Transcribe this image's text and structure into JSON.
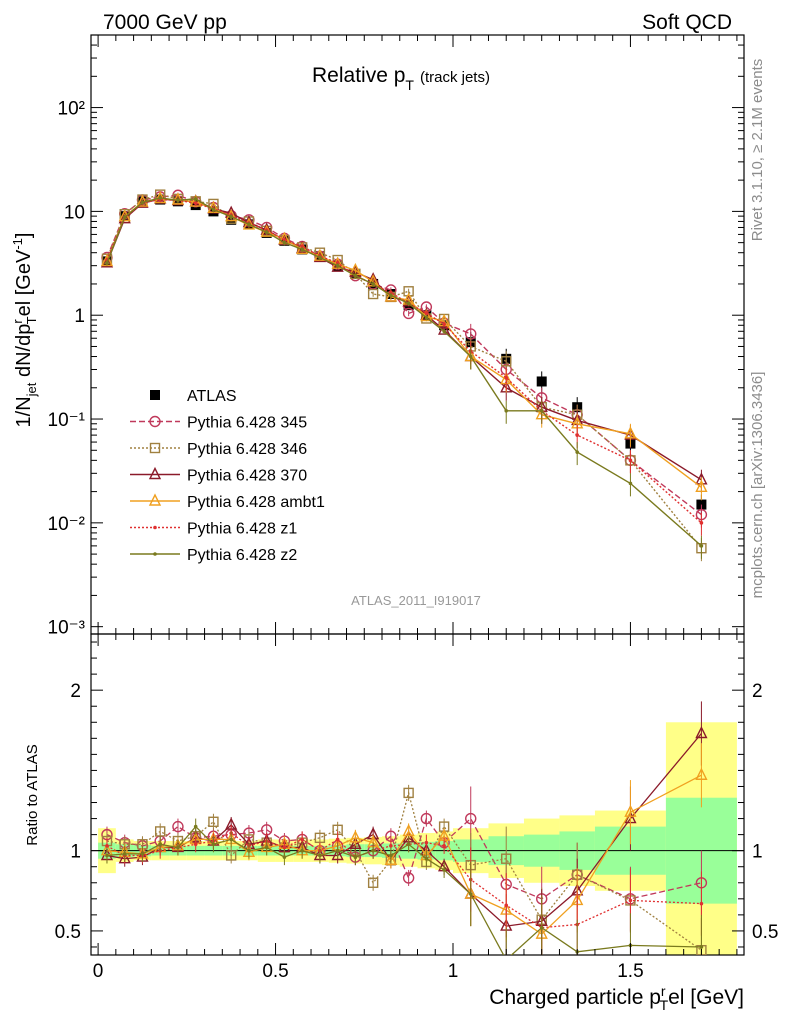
{
  "header": {
    "left": "7000 GeV pp",
    "right": "Soft QCD"
  },
  "side_labels": {
    "rivet": "Rivet 3.1.10, ≥ 2.1M events",
    "mcplots": "mcplots.cern.ch [arXiv:1306.3436]"
  },
  "chart_data": [
    {
      "type": "scatter",
      "title": "Relative p",
      "title_sub": "T",
      "title_suffix": "(track jets)",
      "ylabel": "1/N",
      "ylabel_sub": "jet",
      "ylabel_mid": " dN/dp",
      "ylabel_sup": "r",
      "ylabel_sub2": "T",
      "ylabel_end": "el [GeV",
      "ylabel_sup2": "-1",
      "ylabel_close": "]",
      "yscale": "log",
      "ylim": [
        0.00085,
        500
      ],
      "xlim": [
        -0.02,
        1.82
      ],
      "y_ticks": [
        "10⁻³",
        "10⁻²",
        "10⁻¹",
        "1",
        "10",
        "10²"
      ],
      "watermark": "ATLAS_2011_I919017",
      "x": [
        0.025,
        0.075,
        0.125,
        0.175,
        0.225,
        0.275,
        0.325,
        0.375,
        0.425,
        0.475,
        0.525,
        0.575,
        0.625,
        0.675,
        0.725,
        0.775,
        0.825,
        0.875,
        0.925,
        0.975,
        1.05,
        1.15,
        1.25,
        1.35,
        1.5,
        1.7
      ],
      "series": [
        {
          "name": "ATLAS",
          "color": "#000000",
          "marker": "square-filled",
          "line": "none",
          "values": [
            3.3,
            9.0,
            12.5,
            13.0,
            12.5,
            11.5,
            10.0,
            8.3,
            7.5,
            6.2,
            5.2,
            4.3,
            3.7,
            3.0,
            2.5,
            2.0,
            1.6,
            1.25,
            1.0,
            0.8,
            0.55,
            0.38,
            0.23,
            0.13,
            0.058,
            0.015
          ]
        },
        {
          "name": "Pythia 6.428 345",
          "color": "#c0395b",
          "marker": "circle-open",
          "line": "dashed",
          "values": [
            3.6,
            9.5,
            12.9,
            13.8,
            14.3,
            12.4,
            10.9,
            9.1,
            8.3,
            7.0,
            5.5,
            4.6,
            3.7,
            3.1,
            2.4,
            2.0,
            1.75,
            1.04,
            1.2,
            0.84,
            0.66,
            0.3,
            0.16,
            0.11,
            0.04,
            0.012
          ]
        },
        {
          "name": "Pythia 6.428 346",
          "color": "#a08040",
          "marker": "square-open",
          "line": "dotted",
          "values": [
            3.5,
            9.4,
            13.0,
            14.5,
            13.2,
            12.5,
            11.8,
            8.5,
            8.0,
            6.5,
            5.3,
            4.5,
            4.0,
            3.4,
            2.5,
            1.6,
            1.5,
            1.7,
            0.93,
            0.92,
            0.5,
            0.36,
            0.13,
            0.11,
            0.04,
            0.0057
          ]
        },
        {
          "name": "Pythia 6.428 370",
          "color": "#8b1a2a",
          "marker": "triangle-open",
          "line": "solid",
          "values": [
            3.2,
            8.5,
            12.0,
            13.2,
            12.7,
            12.4,
            10.6,
            9.6,
            7.8,
            6.6,
            5.3,
            4.4,
            3.6,
            2.9,
            2.6,
            2.2,
            1.5,
            1.35,
            1.0,
            0.72,
            0.4,
            0.2,
            0.13,
            0.097,
            0.07,
            0.026
          ]
        },
        {
          "name": "Pythia 6.428 ambt1",
          "color": "#f0a020",
          "marker": "triangle-open",
          "line": "solid",
          "values": [
            3.3,
            8.9,
            12.3,
            13.3,
            12.9,
            12.3,
            10.7,
            8.9,
            7.4,
            6.3,
            5.4,
            4.3,
            3.7,
            3.1,
            2.7,
            2.1,
            1.5,
            1.4,
            0.97,
            0.87,
            0.4,
            0.24,
            0.11,
            0.09,
            0.072,
            0.022
          ]
        },
        {
          "name": "Pythia 6.428 z1",
          "color": "#e03030",
          "marker": "dot",
          "line": "dotted",
          "values": [
            3.4,
            8.7,
            12.1,
            13.0,
            12.8,
            12.0,
            10.6,
            9.2,
            7.7,
            6.6,
            5.3,
            4.6,
            3.7,
            3.2,
            2.4,
            2.0,
            1.65,
            1.3,
            1.05,
            0.82,
            0.45,
            0.25,
            0.12,
            0.07,
            0.04,
            0.01
          ]
        },
        {
          "name": "Pythia 6.428 z2",
          "color": "#7a7a1e",
          "marker": "dot",
          "line": "solid",
          "values": [
            3.2,
            8.8,
            12.2,
            13.5,
            12.8,
            13.2,
            10.4,
            8.9,
            7.5,
            6.3,
            5.0,
            4.3,
            3.6,
            3.0,
            2.4,
            2.0,
            1.55,
            1.3,
            0.95,
            0.7,
            0.4,
            0.12,
            0.12,
            0.048,
            0.024,
            0.006
          ]
        }
      ]
    },
    {
      "type": "scatter",
      "ylabel": "Ratio to ATLAS",
      "xlabel": "Charged particle p",
      "xlabel_sup": "r",
      "xlabel_sub": "T",
      "xlabel_end": "el [GeV]",
      "ylim": [
        0.35,
        2.35
      ],
      "xlim": [
        -0.02,
        1.82
      ],
      "x_ticks": [
        "0",
        "0.5",
        "1",
        "1.5"
      ],
      "y_ticks": [
        "0.5",
        "1",
        "2"
      ],
      "uncertainty_bands": {
        "edges": [
          0.0,
          0.05,
          0.1,
          0.15,
          0.2,
          0.25,
          0.3,
          0.35,
          0.4,
          0.45,
          0.5,
          0.55,
          0.6,
          0.65,
          0.7,
          0.75,
          0.8,
          0.85,
          0.9,
          0.95,
          1.0,
          1.1,
          1.2,
          1.3,
          1.4,
          1.6,
          1.8
        ],
        "stat_halfwidth": [
          0.05,
          0.04,
          0.035,
          0.03,
          0.03,
          0.03,
          0.03,
          0.03,
          0.03,
          0.03,
          0.03,
          0.03,
          0.03,
          0.035,
          0.04,
          0.04,
          0.045,
          0.05,
          0.055,
          0.06,
          0.07,
          0.09,
          0.1,
          0.12,
          0.15,
          0.33
        ],
        "total_halfwidth": [
          0.14,
          0.07,
          0.06,
          0.06,
          0.06,
          0.06,
          0.06,
          0.06,
          0.06,
          0.07,
          0.07,
          0.07,
          0.07,
          0.075,
          0.08,
          0.085,
          0.09,
          0.1,
          0.11,
          0.12,
          0.14,
          0.17,
          0.2,
          0.22,
          0.25,
          0.8
        ],
        "stat_color": "#99ff99",
        "total_color": "#ffff88"
      },
      "series": [
        {
          "name": "Pythia 6.428 345",
          "values": [
            1.1,
            1.05,
            1.03,
            1.06,
            1.15,
            1.08,
            1.09,
            1.1,
            1.11,
            1.13,
            1.06,
            1.07,
            1.0,
            1.03,
            0.96,
            1.0,
            1.09,
            0.83,
            1.2,
            1.05,
            1.2,
            0.79,
            0.7,
            0.85,
            0.7,
            0.8
          ]
        },
        {
          "name": "Pythia 6.428 346",
          "values": [
            1.06,
            1.04,
            1.04,
            1.12,
            1.06,
            1.09,
            1.18,
            0.97,
            1.07,
            1.05,
            1.02,
            1.05,
            1.08,
            1.13,
            1.0,
            0.8,
            0.94,
            1.36,
            0.93,
            1.15,
            0.91,
            0.95,
            0.57,
            0.85,
            0.69,
            0.38
          ]
        },
        {
          "name": "Pythia 6.428 370",
          "values": [
            0.97,
            0.95,
            0.96,
            1.02,
            1.02,
            1.08,
            1.06,
            1.16,
            1.04,
            1.06,
            1.02,
            1.02,
            0.97,
            0.97,
            1.04,
            1.1,
            0.94,
            1.08,
            1.0,
            0.9,
            0.73,
            0.53,
            0.56,
            0.75,
            1.2,
            1.73
          ]
        },
        {
          "name": "Pythia 6.428 ambt1",
          "values": [
            1.0,
            0.99,
            0.98,
            1.02,
            1.03,
            1.07,
            1.07,
            1.07,
            0.99,
            1.02,
            1.04,
            1.0,
            1.0,
            1.03,
            1.08,
            1.05,
            0.94,
            1.12,
            0.97,
            1.09,
            0.73,
            0.63,
            0.48,
            0.69,
            1.24,
            1.47
          ]
        },
        {
          "name": "Pythia 6.428 z1",
          "values": [
            1.03,
            0.97,
            0.97,
            1.0,
            1.02,
            1.04,
            1.06,
            1.11,
            1.03,
            1.06,
            1.02,
            1.07,
            1.0,
            1.07,
            0.96,
            1.0,
            1.03,
            1.04,
            1.05,
            1.03,
            0.82,
            0.66,
            0.52,
            0.54,
            0.69,
            0.67
          ]
        },
        {
          "name": "Pythia 6.428 z2",
          "values": [
            0.97,
            0.98,
            0.98,
            1.04,
            1.02,
            1.15,
            1.04,
            1.07,
            1.0,
            1.02,
            0.96,
            1.0,
            0.97,
            1.0,
            0.96,
            1.0,
            0.97,
            1.04,
            0.95,
            0.88,
            0.73,
            0.32,
            0.52,
            0.37,
            0.41,
            0.4
          ]
        }
      ]
    }
  ]
}
